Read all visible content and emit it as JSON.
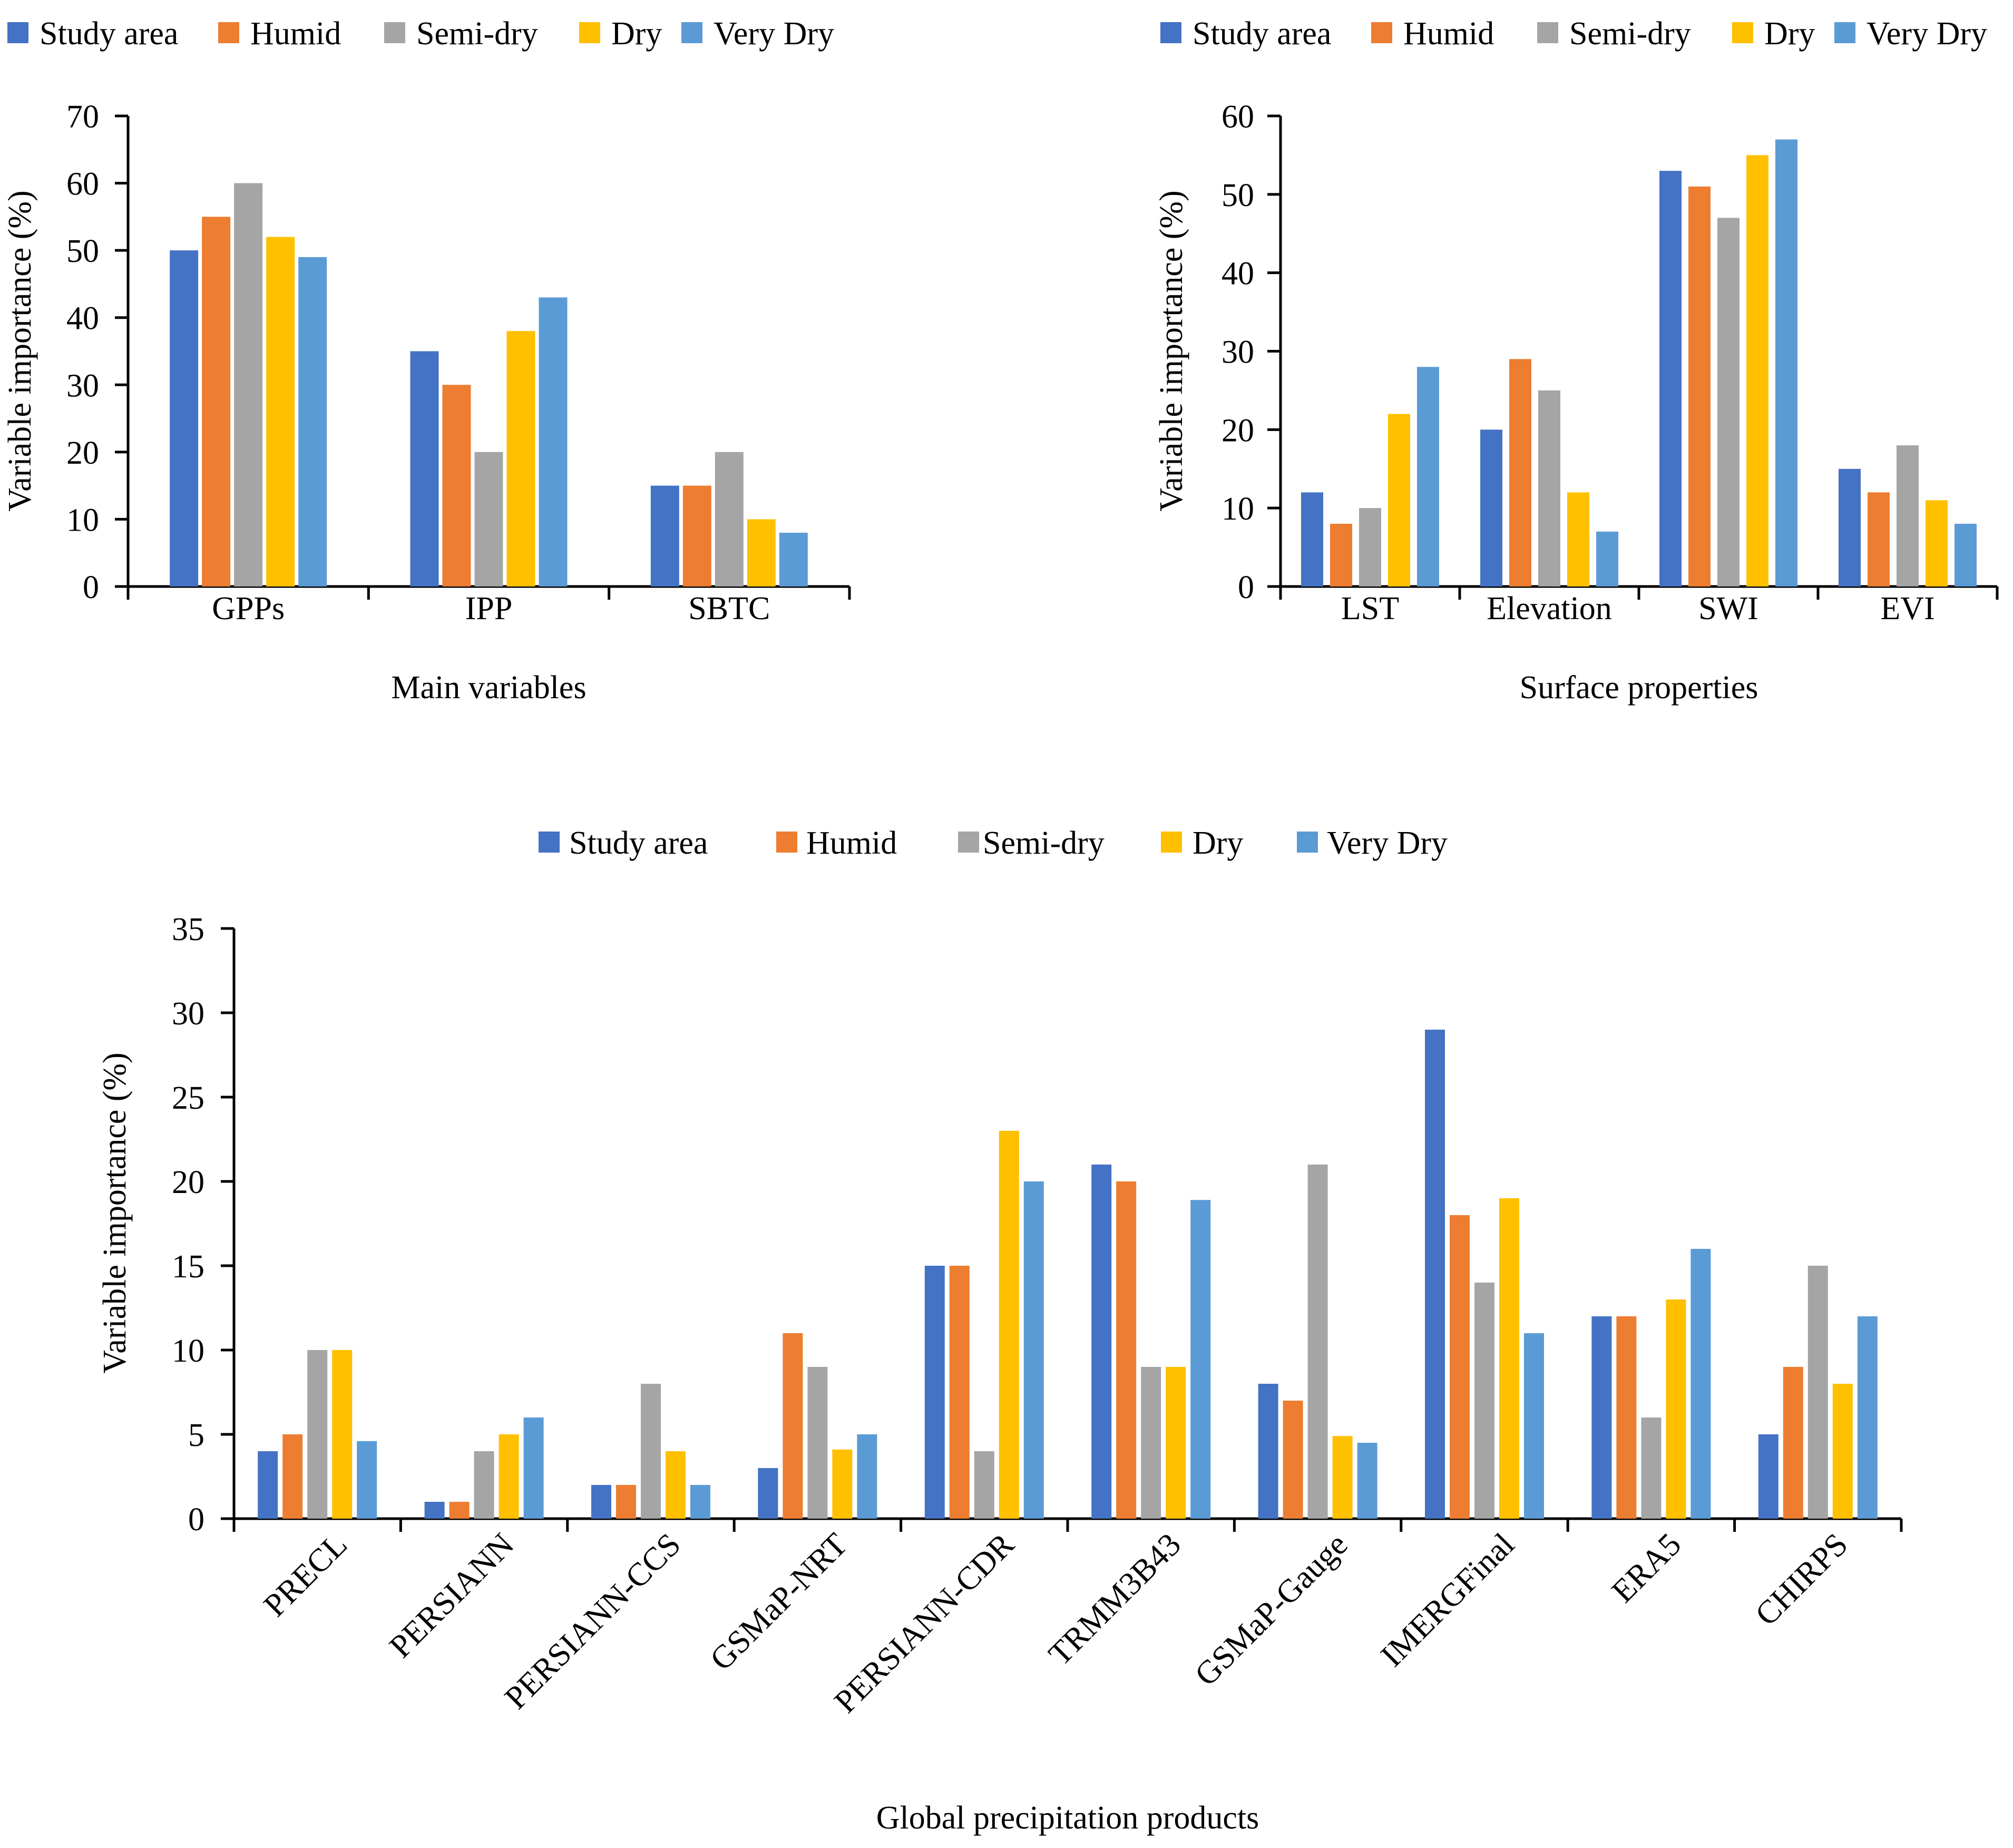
{
  "colors": {
    "study_area": "#4472C4",
    "humid": "#ED7D31",
    "semi_dry": "#A5A5A5",
    "dry": "#FFC000",
    "very_dry": "#5B9BD5",
    "axis": "#000000"
  },
  "chart_data": [
    {
      "type": "bar",
      "title": "",
      "xlabel": "Main variables",
      "ylabel": "Variable importance (%)",
      "ylim": [
        0,
        70
      ],
      "ytick_step": 10,
      "grid": false,
      "legend_position": "top",
      "categories": [
        "GPPs",
        "IPP",
        "SBTC"
      ],
      "series": [
        {
          "name": "Study area",
          "color_key": "study_area",
          "values": [
            50,
            35,
            15
          ]
        },
        {
          "name": "Humid",
          "color_key": "humid",
          "values": [
            55,
            30,
            15
          ]
        },
        {
          "name": "Semi-dry",
          "color_key": "semi_dry",
          "values": [
            60,
            20,
            20
          ]
        },
        {
          "name": "Dry",
          "color_key": "dry",
          "values": [
            52,
            38,
            10
          ]
        },
        {
          "name": "Very Dry",
          "color_key": "very_dry",
          "values": [
            49,
            43,
            8
          ]
        }
      ]
    },
    {
      "type": "bar",
      "title": "",
      "xlabel": "Surface properties",
      "ylabel": "Variable importance (%)",
      "ylim": [
        0,
        60
      ],
      "ytick_step": 10,
      "grid": false,
      "legend_position": "top",
      "categories": [
        "LST",
        "Elevation",
        "SWI",
        "EVI"
      ],
      "series": [
        {
          "name": "Study area",
          "color_key": "study_area",
          "values": [
            12,
            20,
            53,
            15
          ]
        },
        {
          "name": "Humid",
          "color_key": "humid",
          "values": [
            8,
            29,
            51,
            12
          ]
        },
        {
          "name": "Semi-dry",
          "color_key": "semi_dry",
          "values": [
            10,
            25,
            47,
            18
          ]
        },
        {
          "name": "Dry",
          "color_key": "dry",
          "values": [
            22,
            12,
            55,
            11
          ]
        },
        {
          "name": "Very Dry",
          "color_key": "very_dry",
          "values": [
            28,
            7,
            57,
            8
          ]
        }
      ]
    },
    {
      "type": "bar",
      "title": "",
      "xlabel": "Global precipitation products",
      "ylabel": "Variable importance (%)",
      "ylim": [
        0,
        35
      ],
      "ytick_step": 5,
      "grid": false,
      "legend_position": "top",
      "categories": [
        "PRECL",
        "PERSIANN",
        "PERSIANN-CCS",
        "GSMaP-NRT",
        "PERSIANN-CDR",
        "TRMM3B43",
        "GSMaP-Gauge",
        "IMERGFinal",
        "ERA5",
        "CHIRPS"
      ],
      "series": [
        {
          "name": "Study area",
          "color_key": "study_area",
          "values": [
            4,
            1,
            2,
            3,
            15,
            21,
            8,
            29,
            12,
            5
          ]
        },
        {
          "name": "Humid",
          "color_key": "humid",
          "values": [
            5,
            1,
            2,
            11,
            15,
            20,
            7,
            18,
            12,
            9
          ]
        },
        {
          "name": "Semi-dry",
          "color_key": "semi_dry",
          "values": [
            10,
            4,
            8,
            9,
            4,
            9,
            21,
            14,
            6,
            15
          ]
        },
        {
          "name": "Dry",
          "color_key": "dry",
          "values": [
            10,
            5,
            4,
            4.1,
            23,
            9,
            4.9,
            19,
            13,
            8
          ]
        },
        {
          "name": "Very Dry",
          "color_key": "very_dry",
          "values": [
            4.6,
            6,
            2,
            5,
            20,
            18.9,
            4.5,
            11,
            16,
            12
          ]
        }
      ]
    }
  ]
}
